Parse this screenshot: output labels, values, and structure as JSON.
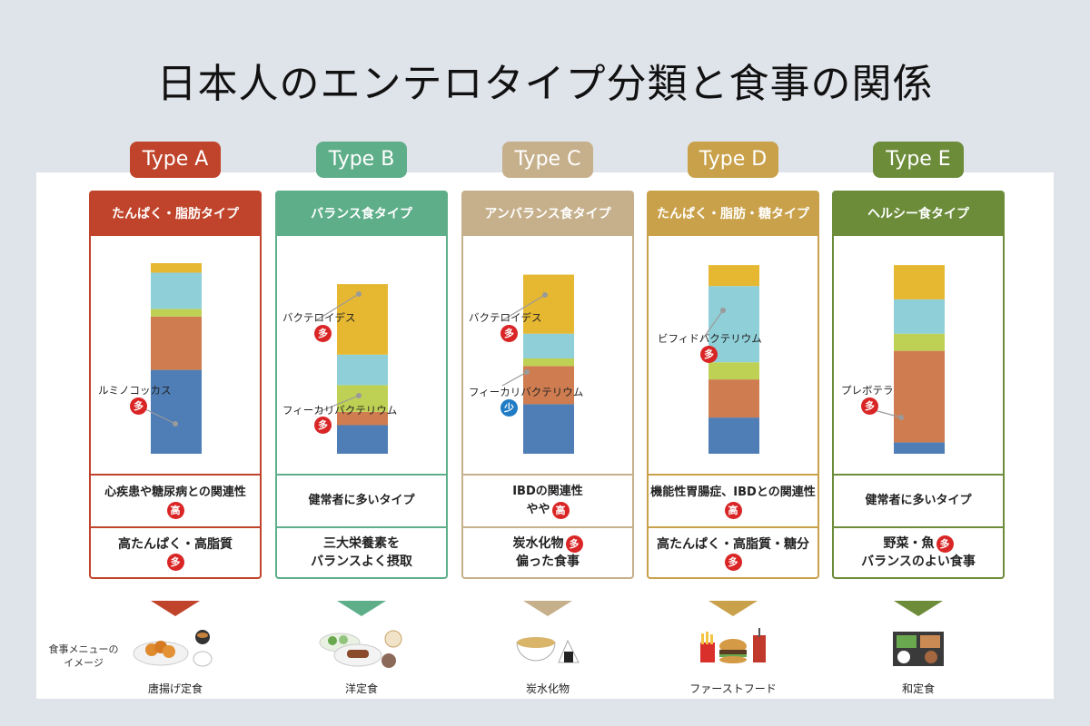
{
  "title": "日本人のエンテロタイプ分類と食事の関係",
  "menu_label": "食事メニューのイメージ",
  "badges": {
    "many": "多",
    "few": "少",
    "high": "高"
  },
  "types": [
    {
      "badge": "Type A",
      "color": "#c0442b",
      "header": "たんぱく・脂肪タイプ",
      "relation": "心疾患や糖尿病との関連性",
      "relation_badge": "高",
      "diet": "高たんぱく・高脂質",
      "diet_badge": "多",
      "food": "唐揚げ定食",
      "annotations": [
        {
          "text": "ルミノコッカス",
          "badge": "多"
        }
      ]
    },
    {
      "badge": "Type B",
      "color": "#5fae8a",
      "header": "バランス食タイプ",
      "relation": "健常者に多いタイプ",
      "diet_line1": "三大栄養素を",
      "diet_line2": "バランスよく摂取",
      "food": "洋定食",
      "annotations": [
        {
          "text": "バクテロイデス",
          "badge": "多"
        },
        {
          "text": "フィーカリバクテリウム",
          "badge": "多"
        }
      ]
    },
    {
      "badge": "Type C",
      "color": "#c6b08c",
      "header": "アンバランス食タイプ",
      "relation_line1": "IBDの関連性",
      "relation_line2": "やや",
      "relation_badge": "高",
      "diet_line1": "炭水化物",
      "diet_badge": "多",
      "diet_line2": "偏った食事",
      "food": "炭水化物",
      "annotations": [
        {
          "text": "バクテロイデス",
          "badge": "多"
        },
        {
          "text": "フィーカリバクテリウム",
          "badge": "少"
        }
      ]
    },
    {
      "badge": "Type D",
      "color": "#c9a14a",
      "header": "たんぱく・脂肪・糖タイプ",
      "relation": "機能性胃腸症、IBDとの関連性",
      "relation_badge": "高",
      "diet": "高たんぱく・高脂質・糖分",
      "diet_badge": "多",
      "food": "ファーストフード",
      "annotations": [
        {
          "text": "ビフィドバクテリウム",
          "badge": "多"
        }
      ]
    },
    {
      "badge": "Type E",
      "color": "#6c8c3a",
      "header": "ヘルシー食タイプ",
      "relation": "健常者に多いタイプ",
      "diet_line1": "野菜・魚",
      "diet_badge": "多",
      "diet_line2": "バランスのよい食事",
      "food": "和定食",
      "annotations": [
        {
          "text": "プレボテラ",
          "badge": "多"
        }
      ]
    }
  ],
  "chart_data": {
    "type": "bar",
    "stacked": true,
    "categories": [
      "Type A",
      "Type B",
      "Type C",
      "Type D",
      "Type E"
    ],
    "segment_order_bottom_to_top": [
      "blue",
      "orange",
      "green",
      "cyan",
      "yellow"
    ],
    "colors": {
      "yellow": "#e6b832",
      "cyan": "#8ecfd8",
      "green": "#bfd154",
      "orange": "#cf7d50",
      "blue": "#4f7db5"
    },
    "series": [
      {
        "values": [
          44,
          15,
          26,
          19,
          6
        ]
      },
      {
        "values": [
          28,
          7,
          20,
          20,
          48
        ]
      },
      {
        "values": [
          4,
          14,
          4,
          9,
          9
        ]
      },
      {
        "values": [
          19,
          16,
          13,
          40,
          18
        ]
      },
      {
        "values": [
          5,
          37,
          31,
          11,
          18
        ]
      }
    ],
    "ylim": [
      0,
      100
    ]
  }
}
